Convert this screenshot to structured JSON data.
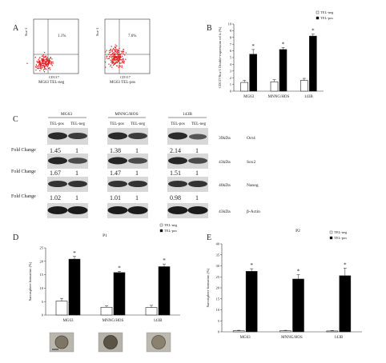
{
  "panels": {
    "A": "A",
    "B": "B",
    "C": "C",
    "D": "D",
    "E": "E"
  },
  "flow": [
    {
      "yaxis": "Sca-1",
      "xaxis": "CD117",
      "caption": "MG63 TEL-neg",
      "gate_pct": "1.1%"
    },
    {
      "yaxis": "Sca-1",
      "xaxis": "CD117",
      "caption": "MG63 TEL-pos",
      "gate_pct": "7.6%"
    }
  ],
  "western": {
    "groups": [
      {
        "name": "MG63",
        "lanes": [
          "TEL-pos",
          "TEL-neg"
        ]
      },
      {
        "name": "MNNG/HOS",
        "lanes": [
          "TEL-pos",
          "TEL-neg"
        ]
      },
      {
        "name": "143B",
        "lanes": [
          "TEL-pos",
          "TEL-neg"
        ]
      }
    ],
    "fold_label": "Fold Change",
    "blots": [
      {
        "kda": "39kDa",
        "protein": "Oct4",
        "folds": [
          "1.45",
          "1",
          "1.38",
          "1",
          "2.14",
          "1"
        ]
      },
      {
        "kda": "43kDa",
        "protein": "Sox2",
        "folds": [
          "1.67",
          "1",
          "1.47",
          "1",
          "1.51",
          "1"
        ]
      },
      {
        "kda": "40kDa",
        "protein": "Nanog",
        "folds": [
          "1.02",
          "1",
          "1.01",
          "1",
          "0.98",
          "1"
        ]
      },
      {
        "kda": "43kDa",
        "protein": "β-Actin",
        "folds": []
      }
    ]
  },
  "chart_data": [
    {
      "panel": "B",
      "type": "bar",
      "title": "",
      "ylabel": "CD117/Sca-1 Double-expression cells (%)",
      "xlabel": "",
      "categories": [
        "MG63",
        "MNNG/HOS",
        "143B"
      ],
      "ylim": [
        0,
        10
      ],
      "yticks": [
        0,
        1,
        2,
        3,
        4,
        5,
        6,
        7,
        8,
        9,
        10
      ],
      "legend": "top-right",
      "series": [
        {
          "name": "TEL-neg",
          "color": "#ffffff",
          "values": [
            1.3,
            1.4,
            1.6
          ],
          "errors": [
            0.3,
            0.3,
            0.3
          ]
        },
        {
          "name": "TEL-pos",
          "color": "#000000",
          "values": [
            5.5,
            6.2,
            8.2
          ],
          "errors": [
            0.7,
            0.3,
            0.3
          ]
        }
      ],
      "annotations": [
        "*",
        "*",
        "*"
      ]
    },
    {
      "panel": "D",
      "type": "bar",
      "title": "P1",
      "ylabel": "Sarcosphere formation (%)",
      "xlabel": "",
      "categories": [
        "MG63",
        "MNNG/HOS",
        "143B"
      ],
      "ylim": [
        0,
        25
      ],
      "yticks": [
        0,
        5,
        10,
        15,
        20,
        25
      ],
      "legend": "top-right",
      "series": [
        {
          "name": "TEL-neg",
          "color": "#ffffff",
          "values": [
            5.2,
            2.9,
            2.8
          ],
          "errors": [
            1.0,
            0.5,
            0.8
          ]
        },
        {
          "name": "TEL-pos",
          "color": "#000000",
          "values": [
            20.8,
            15.8,
            18.0
          ],
          "errors": [
            1.0,
            0.4,
            1.0
          ]
        }
      ],
      "annotations": [
        "*",
        "*",
        "*"
      ]
    },
    {
      "panel": "E",
      "type": "bar",
      "title": "P2",
      "ylabel": "Sarcosphere formation (%)",
      "xlabel": "",
      "categories": [
        "MG63",
        "MNNG/HOS",
        "143B"
      ],
      "ylim": [
        0,
        40
      ],
      "yticks": [
        0,
        5,
        10,
        15,
        20,
        25,
        30,
        35,
        40
      ],
      "legend": "top-right",
      "series": [
        {
          "name": "TEL-neg",
          "color": "#ffffff",
          "values": [
            0.5,
            0.5,
            0.4
          ],
          "errors": [
            0.2,
            0.2,
            0.2
          ]
        },
        {
          "name": "TEL-pos",
          "color": "#000000",
          "values": [
            27.5,
            24.0,
            25.5
          ],
          "errors": [
            1.2,
            2.0,
            3.5
          ]
        }
      ],
      "annotations": [
        "*",
        "*",
        "*"
      ]
    }
  ]
}
